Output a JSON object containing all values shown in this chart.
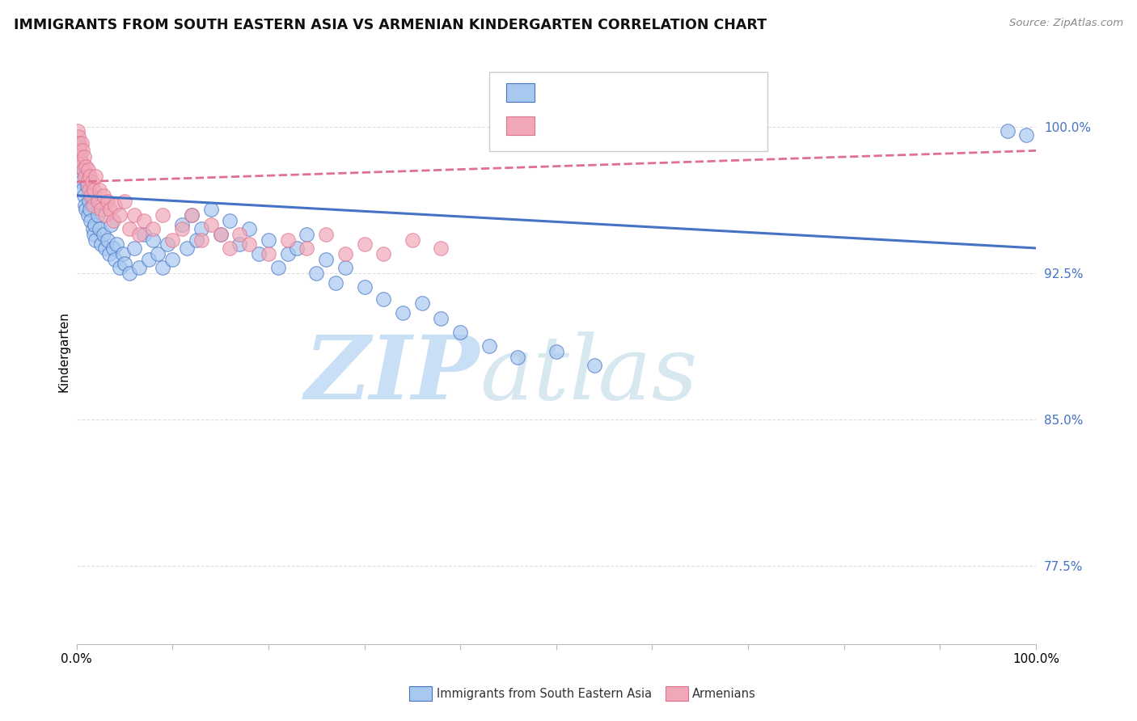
{
  "title": "IMMIGRANTS FROM SOUTH EASTERN ASIA VS ARMENIAN KINDERGARTEN CORRELATION CHART",
  "source_text": "Source: ZipAtlas.com",
  "ylabel": "Kindergarten",
  "x_min": 0.0,
  "x_max": 1.0,
  "y_min": 0.735,
  "y_max": 1.035,
  "y_ticks": [
    0.775,
    0.85,
    0.925,
    1.0
  ],
  "y_tick_labels": [
    "77.5%",
    "85.0%",
    "92.5%",
    "100.0%"
  ],
  "legend_blue_label": "Immigrants from South Eastern Asia",
  "legend_pink_label": "Armenians",
  "blue_trend_start_x": 0.0,
  "blue_trend_start_y": 0.965,
  "blue_trend_end_x": 1.0,
  "blue_trend_end_y": 0.938,
  "pink_trend_start_x": 0.0,
  "pink_trend_start_y": 0.972,
  "pink_trend_end_x": 1.0,
  "pink_trend_end_y": 0.988,
  "blue_scatter_x": [
    0.002,
    0.003,
    0.003,
    0.004,
    0.005,
    0.006,
    0.007,
    0.008,
    0.009,
    0.01,
    0.011,
    0.012,
    0.013,
    0.014,
    0.015,
    0.016,
    0.017,
    0.018,
    0.019,
    0.02,
    0.022,
    0.024,
    0.026,
    0.028,
    0.03,
    0.032,
    0.034,
    0.036,
    0.038,
    0.04,
    0.042,
    0.045,
    0.048,
    0.05,
    0.055,
    0.06,
    0.065,
    0.07,
    0.075,
    0.08,
    0.085,
    0.09,
    0.095,
    0.1,
    0.11,
    0.115,
    0.12,
    0.125,
    0.13,
    0.14,
    0.15,
    0.16,
    0.17,
    0.18,
    0.19,
    0.2,
    0.21,
    0.22,
    0.23,
    0.24,
    0.25,
    0.26,
    0.27,
    0.28,
    0.3,
    0.32,
    0.34,
    0.36,
    0.38,
    0.4,
    0.43,
    0.46,
    0.5,
    0.54,
    0.97,
    0.99
  ],
  "blue_scatter_y": [
    0.992,
    0.988,
    0.98,
    0.975,
    0.972,
    0.968,
    0.978,
    0.965,
    0.96,
    0.958,
    0.97,
    0.955,
    0.962,
    0.958,
    0.952,
    0.965,
    0.948,
    0.945,
    0.95,
    0.942,
    0.955,
    0.948,
    0.94,
    0.945,
    0.938,
    0.942,
    0.935,
    0.95,
    0.938,
    0.932,
    0.94,
    0.928,
    0.935,
    0.93,
    0.925,
    0.938,
    0.928,
    0.945,
    0.932,
    0.942,
    0.935,
    0.928,
    0.94,
    0.932,
    0.95,
    0.938,
    0.955,
    0.942,
    0.948,
    0.958,
    0.945,
    0.952,
    0.94,
    0.948,
    0.935,
    0.942,
    0.928,
    0.935,
    0.938,
    0.945,
    0.925,
    0.932,
    0.92,
    0.928,
    0.918,
    0.912,
    0.905,
    0.91,
    0.902,
    0.895,
    0.888,
    0.882,
    0.885,
    0.878,
    0.998,
    0.996
  ],
  "pink_scatter_x": [
    0.001,
    0.002,
    0.003,
    0.003,
    0.004,
    0.005,
    0.005,
    0.006,
    0.007,
    0.008,
    0.009,
    0.01,
    0.011,
    0.012,
    0.013,
    0.014,
    0.015,
    0.016,
    0.017,
    0.018,
    0.02,
    0.022,
    0.024,
    0.026,
    0.028,
    0.03,
    0.032,
    0.035,
    0.038,
    0.04,
    0.045,
    0.05,
    0.055,
    0.06,
    0.065,
    0.07,
    0.08,
    0.09,
    0.1,
    0.11,
    0.12,
    0.13,
    0.14,
    0.15,
    0.16,
    0.17,
    0.18,
    0.2,
    0.22,
    0.24,
    0.26,
    0.28,
    0.3,
    0.32,
    0.35,
    0.38
  ],
  "pink_scatter_y": [
    0.998,
    0.995,
    0.992,
    0.988,
    0.985,
    0.992,
    0.982,
    0.988,
    0.978,
    0.985,
    0.975,
    0.98,
    0.972,
    0.978,
    0.968,
    0.975,
    0.965,
    0.972,
    0.96,
    0.968,
    0.975,
    0.962,
    0.968,
    0.958,
    0.965,
    0.955,
    0.962,
    0.958,
    0.952,
    0.96,
    0.955,
    0.962,
    0.948,
    0.955,
    0.945,
    0.952,
    0.948,
    0.955,
    0.942,
    0.948,
    0.955,
    0.942,
    0.95,
    0.945,
    0.938,
    0.945,
    0.94,
    0.935,
    0.942,
    0.938,
    0.945,
    0.935,
    0.94,
    0.935,
    0.942,
    0.938
  ],
  "background_color": "#ffffff",
  "blue_dot_color": "#A8C8F0",
  "pink_dot_color": "#F0A8B8",
  "blue_line_color": "#4472C4",
  "pink_line_color": "#E07090",
  "watermark_zip_color": "#C8DFF5",
  "watermark_atlas_color": "#D8E8F0",
  "grid_color": "#DDDDDD",
  "tick_color": "#4472C4"
}
